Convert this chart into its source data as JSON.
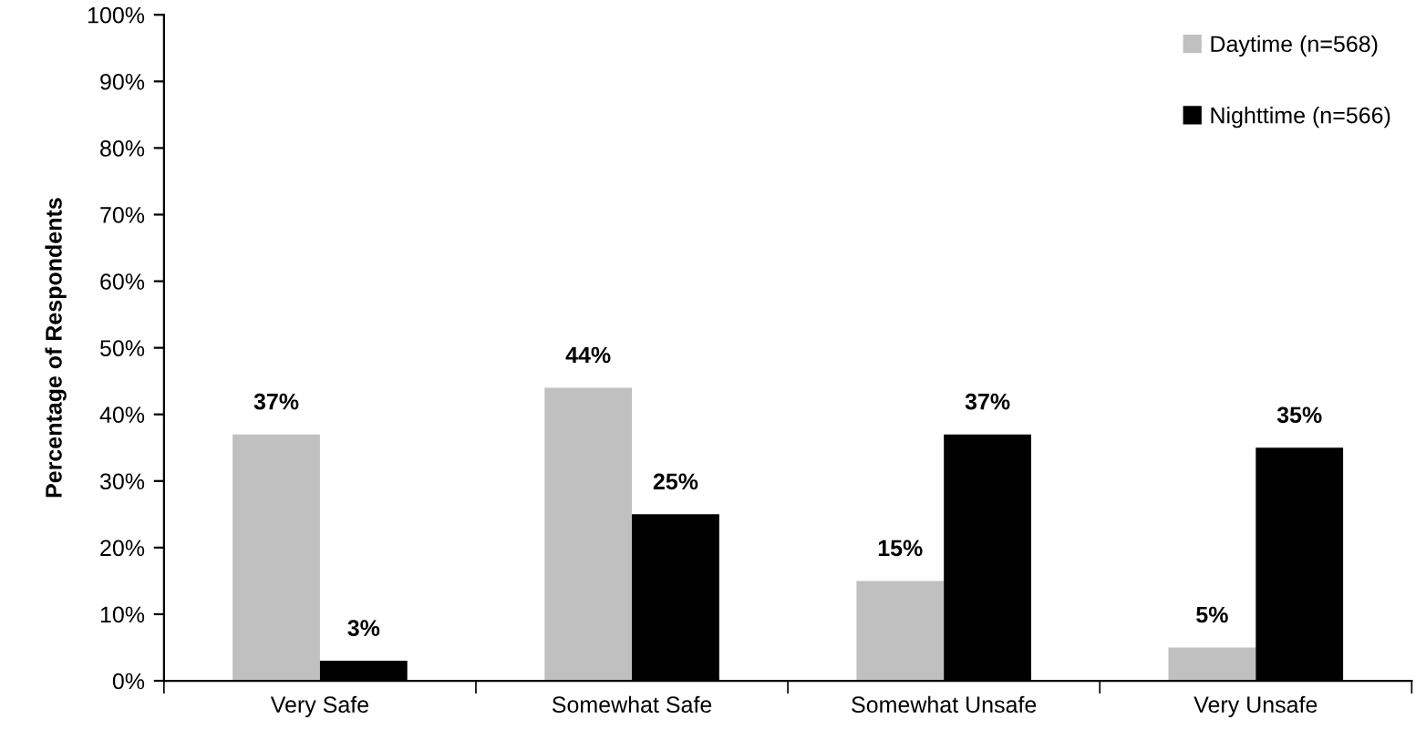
{
  "chart_data": {
    "type": "bar",
    "ylabel": "Percentage of Respondents",
    "categories": [
      "Very Safe",
      "Somewhat Safe",
      "Somewhat Unsafe",
      "Very Unsafe"
    ],
    "series": [
      {
        "name": "Daytime (n=568)",
        "color": "#c0c0c0",
        "values": [
          37,
          44,
          15,
          5
        ],
        "value_labels": [
          "37%",
          "44%",
          "15%",
          "5%"
        ]
      },
      {
        "name": "Nighttime (n=566)",
        "color": "#000000",
        "values": [
          3,
          25,
          37,
          35
        ],
        "value_labels": [
          "3%",
          "25%",
          "37%",
          "35%"
        ]
      }
    ],
    "ylim": [
      0,
      100
    ],
    "yticks": [
      {
        "value": 0,
        "label": "0%"
      },
      {
        "value": 10,
        "label": "10%"
      },
      {
        "value": 20,
        "label": "20%"
      },
      {
        "value": 30,
        "label": "30%"
      },
      {
        "value": 40,
        "label": "40%"
      },
      {
        "value": 50,
        "label": "50%"
      },
      {
        "value": 60,
        "label": "60%"
      },
      {
        "value": 70,
        "label": "70%"
      },
      {
        "value": 80,
        "label": "80%"
      },
      {
        "value": 90,
        "label": "90%"
      },
      {
        "value": 100,
        "label": "100%"
      }
    ],
    "grid": false,
    "legend": "top right"
  }
}
